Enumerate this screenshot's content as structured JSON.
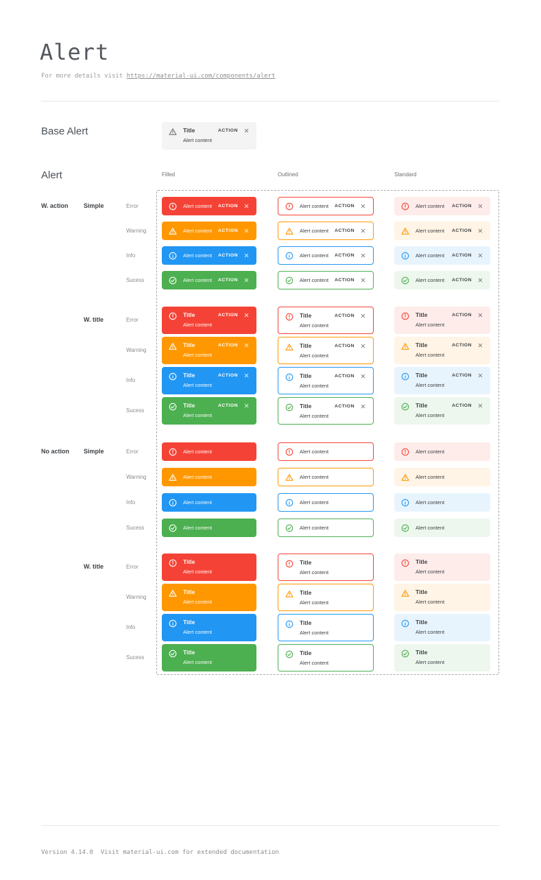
{
  "page": {
    "title": "Alert",
    "subtitle_prefix": "For more details visit ",
    "subtitle_link": "https://material-ui.com/components/alert",
    "footer": "Version 4.14.0  Visit material-ui.com for extended documentation"
  },
  "base_alert_section": {
    "label": "Base Alert",
    "background": "#f4f4f4",
    "icon_color": "#757575",
    "alert": {
      "title": "Title",
      "content": "Alert content",
      "action_label": "ACTION"
    }
  },
  "alert_matrix": {
    "label": "Alert",
    "columns": [
      {
        "label": "Filled",
        "key": "filled"
      },
      {
        "label": "Outlined",
        "key": "outlined"
      },
      {
        "label": "Standard",
        "key": "standard"
      }
    ],
    "alert_text": {
      "title": "Title",
      "content": "Alert content",
      "action_label": "ACTION"
    },
    "severities": [
      {
        "label": "Error",
        "key": "error",
        "icon": "error-circle-icon",
        "main": "#f44336",
        "standard_bg": "#fdecea"
      },
      {
        "label": "Warning",
        "key": "warning",
        "icon": "warning-triangle-icon",
        "main": "#ff9800",
        "standard_bg": "#fff4e5"
      },
      {
        "label": "Info",
        "key": "info",
        "icon": "info-circle-icon",
        "main": "#2196f3",
        "standard_bg": "#e8f4fd"
      },
      {
        "label": "Sucess",
        "key": "success",
        "icon": "check-circle-icon",
        "main": "#4caf50",
        "standard_bg": "#edf7ed"
      }
    ],
    "row_groups": [
      {
        "action_label": "W. action",
        "variant_label": "Simple",
        "with_title": false,
        "with_action": true
      },
      {
        "action_label": "",
        "variant_label": "W. title",
        "with_title": true,
        "with_action": true
      },
      {
        "action_label": "No action",
        "variant_label": "Simple",
        "with_title": false,
        "with_action": false
      },
      {
        "action_label": "",
        "variant_label": "W. title",
        "with_title": true,
        "with_action": false
      }
    ]
  }
}
